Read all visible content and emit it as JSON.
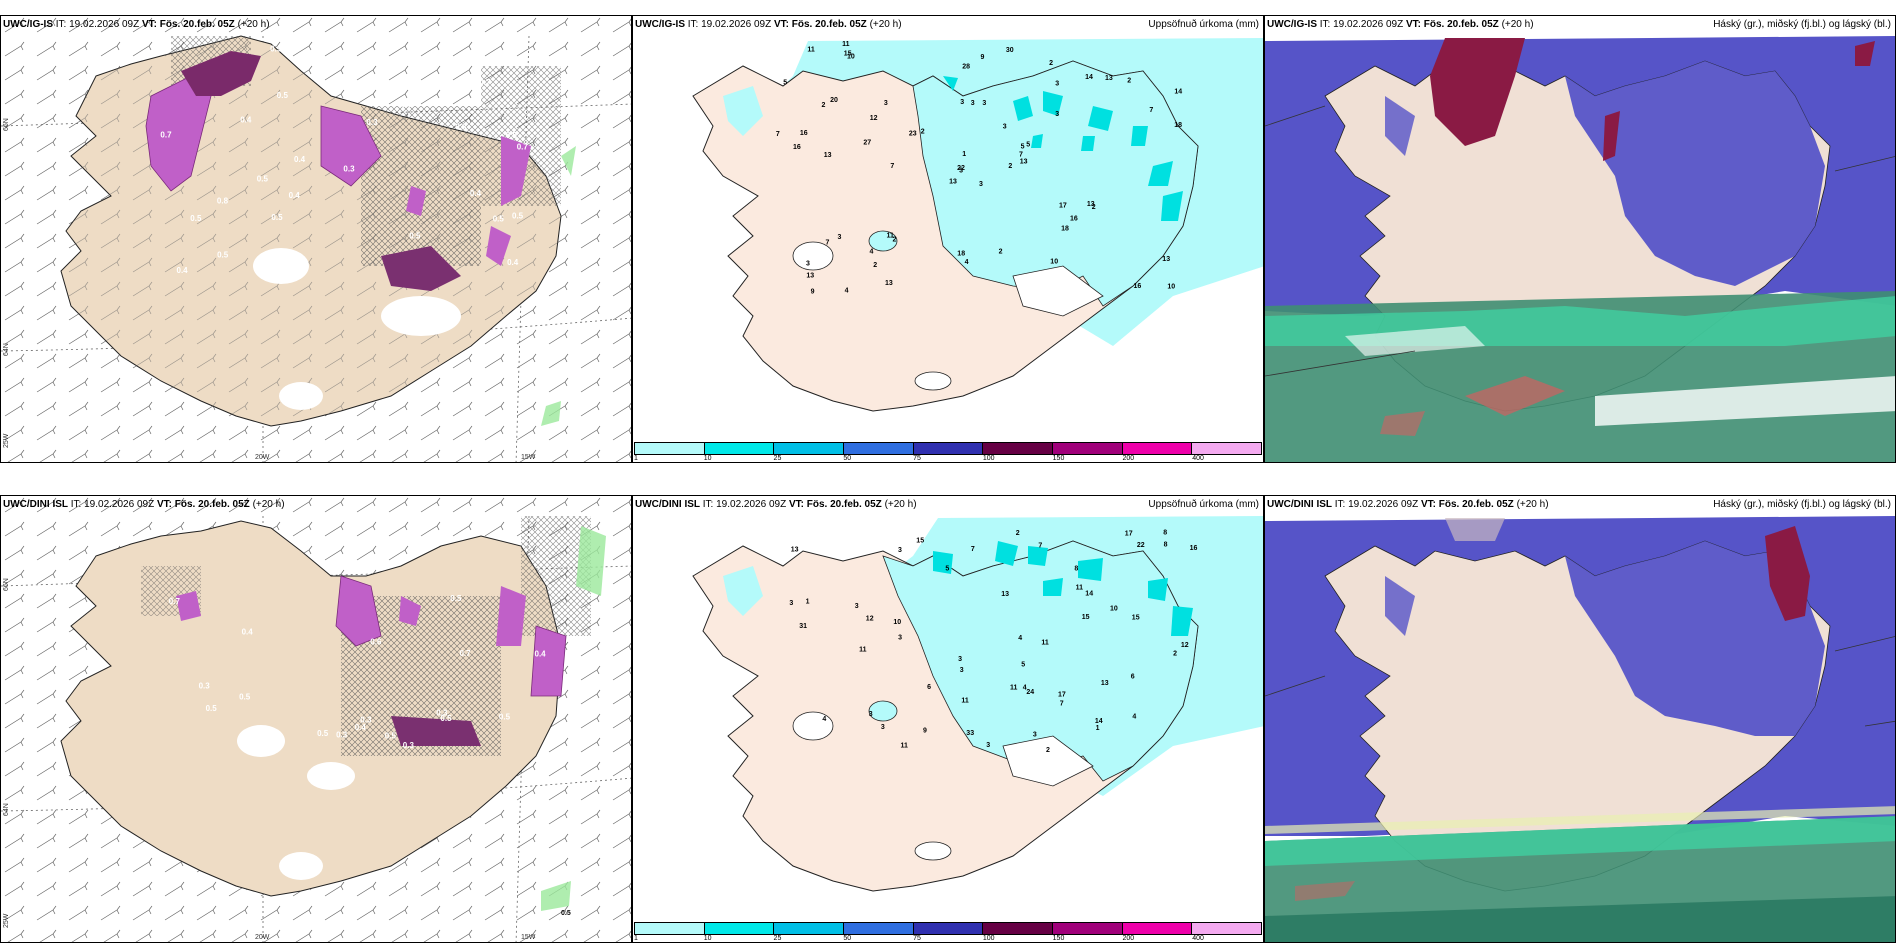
{
  "panels": {
    "p1": {
      "model": "UWC/IG-IS",
      "it": "IT: 19.02.2026 09Z",
      "vt": "VT: Fös. 20.feb. 05Z",
      "lead": "(+20 h)",
      "right": ""
    },
    "p2": {
      "model": "UWC/IG-IS",
      "it": "IT: 19.02.2026 09Z",
      "vt": "VT: Fös. 20.feb. 05Z",
      "lead": "(+20 h)",
      "right": "Uppsöfnuð úrkoma (mm)"
    },
    "p3": {
      "model": "UWC/IG-IS",
      "it": "IT: 19.02.2026 09Z",
      "vt": "VT: Fös. 20.feb. 05Z",
      "lead": "(+20 h)",
      "right": "Háský (gr.), miðský (fj.bl.) og lágský (bl.)"
    },
    "p4": {
      "model": "UWC/DINI ISL",
      "it": "IT: 19.02.2026 09Z",
      "vt": "VT: Fös. 20.feb. 05Z",
      "lead": "(+20 h)",
      "right": ""
    },
    "p5": {
      "model": "UWC/DINI ISL",
      "it": "IT: 19.02.2026 09Z",
      "vt": "VT: Fös. 20.feb. 05Z",
      "lead": "(+20 h)",
      "right": "Uppsöfnuð úrkoma (mm)"
    },
    "p6": {
      "model": "UWC/DINI ISL",
      "it": "IT: 19.02.2026 09Z",
      "vt": "VT: Fös. 20.feb. 05Z",
      "lead": "(+20 h)",
      "right": "Háský (gr.), miðský (fj.bl.) og lágský (bl.)"
    }
  },
  "axes": {
    "lat66": "66N",
    "lat64": "64N",
    "lon25": "25W",
    "lon20": "20W",
    "lon15": "15W"
  },
  "legend": {
    "ticks": [
      "1",
      "10",
      "25",
      "50",
      "75",
      "100",
      "150",
      "200",
      "400"
    ],
    "colors": [
      "#b4fafa",
      "#00e8e8",
      "#00bfe6",
      "#2f6ee0",
      "#3030b0",
      "#660044",
      "#a0007a",
      "#ee00aa",
      "#f4aaf0"
    ]
  },
  "precip_labels_top": [
    "3",
    "2",
    "3",
    "3",
    "5",
    "2",
    "2",
    "3",
    "3",
    "2",
    "10",
    "10",
    "13",
    "14",
    "13",
    "3",
    "4",
    "3",
    "3",
    "3",
    "2",
    "13",
    "2",
    "3",
    "5",
    "2",
    "20",
    "28",
    "16",
    "17",
    "18",
    "22",
    "18",
    "1",
    "3",
    "14",
    "11",
    "16",
    "13",
    "13",
    "30",
    "23",
    "27",
    "18",
    "13",
    "7",
    "7",
    "9",
    "4",
    "13",
    "7",
    "7",
    "5",
    "16",
    "10",
    "4",
    "15",
    "11",
    "2",
    "2",
    "9",
    "7",
    "16",
    "12",
    "13",
    "11"
  ],
  "precip_labels_bottom": [
    "2",
    "3",
    "3",
    "3",
    "10",
    "3",
    "2",
    "3",
    "3",
    "3",
    "4",
    "3",
    "3",
    "4",
    "15",
    "17",
    "31",
    "22",
    "13",
    "15",
    "14",
    "24",
    "11",
    "1",
    "11",
    "14",
    "11",
    "12",
    "3",
    "5",
    "7",
    "8",
    "8",
    "9",
    "15",
    "33",
    "2",
    "1",
    "12",
    "17",
    "7",
    "4",
    "16",
    "4",
    "7",
    "6",
    "11",
    "11",
    "5",
    "8",
    "6",
    "13",
    "10",
    "11",
    "13"
  ],
  "snow_labels_top": [
    "0.5",
    "0.5",
    "0.9",
    "0.7",
    "0.4",
    "0.5",
    "0.4",
    "0.5",
    "0.5",
    "0.7",
    "0.4",
    "0.4",
    "0.8",
    "0.5",
    "0.5",
    "0.3",
    "0.5",
    "0.7",
    "0.9",
    "0.6",
    "0.4",
    "0.3",
    "0.5",
    "0.8",
    "0.3",
    "0.5",
    "0.4",
    "0.5"
  ],
  "snow_labels_bottom": [
    "0.5",
    "0.3",
    "0.6",
    "0.7",
    "0.4",
    "0.5",
    "0.4",
    "0.3",
    "0.7",
    "0.4",
    "0.5",
    "0.5",
    "0.3",
    "0.3",
    "0.5",
    "0.5",
    "0.3",
    "0.5"
  ]
}
